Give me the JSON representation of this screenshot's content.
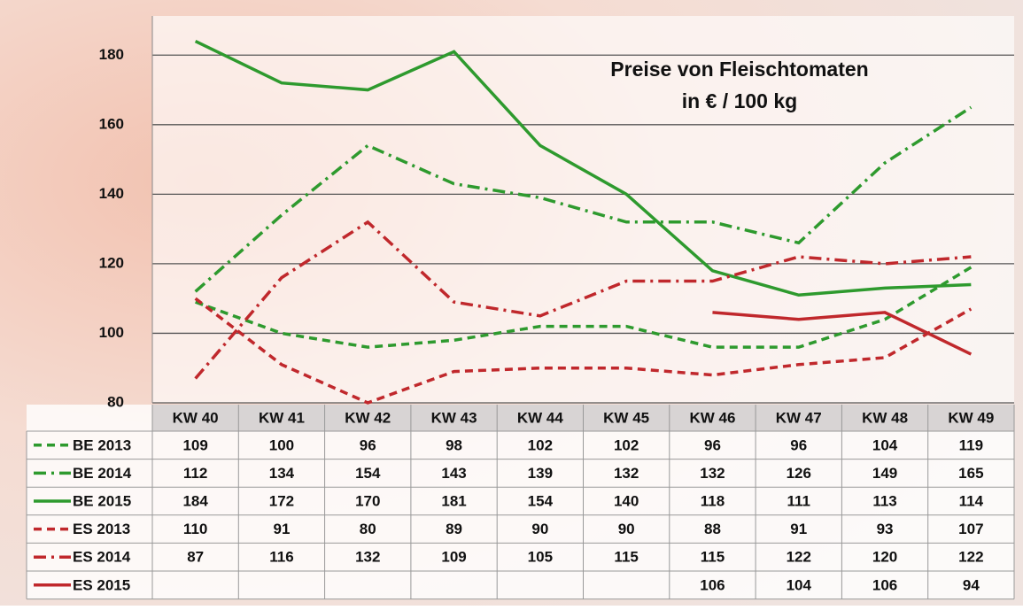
{
  "chart_data": {
    "type": "line",
    "title": "Preise von Fleischtomaten",
    "subtitle": "in € / 100 kg",
    "categories": [
      "KW 40",
      "KW 41",
      "KW 42",
      "KW 43",
      "KW 44",
      "KW 45",
      "KW 46",
      "KW 47",
      "KW 48",
      "KW 49"
    ],
    "series": [
      {
        "name": "BE 2013",
        "color": "#2e9a2e",
        "style": "dashed",
        "values": [
          109,
          100,
          96,
          98,
          102,
          102,
          96,
          96,
          104,
          119
        ]
      },
      {
        "name": "BE 2014",
        "color": "#2e9a2e",
        "style": "dashdot",
        "values": [
          112,
          134,
          154,
          143,
          139,
          132,
          132,
          126,
          149,
          165
        ]
      },
      {
        "name": "BE 2015",
        "color": "#2e9a2e",
        "style": "solid",
        "values": [
          184,
          172,
          170,
          181,
          154,
          140,
          118,
          111,
          113,
          114
        ]
      },
      {
        "name": "ES 2013",
        "color": "#c0282c",
        "style": "dashed",
        "values": [
          110,
          91,
          80,
          89,
          90,
          90,
          88,
          91,
          93,
          107
        ]
      },
      {
        "name": "ES 2014",
        "color": "#c0282c",
        "style": "dashdot",
        "values": [
          87,
          116,
          132,
          109,
          105,
          115,
          115,
          122,
          120,
          122
        ]
      },
      {
        "name": "ES 2015",
        "color": "#c0282c",
        "style": "solid",
        "values": [
          null,
          null,
          null,
          null,
          null,
          null,
          106,
          104,
          106,
          94
        ]
      }
    ],
    "ylim": [
      80,
      190
    ],
    "yticks": [
      80,
      100,
      120,
      140,
      160,
      180
    ],
    "grid": true
  }
}
